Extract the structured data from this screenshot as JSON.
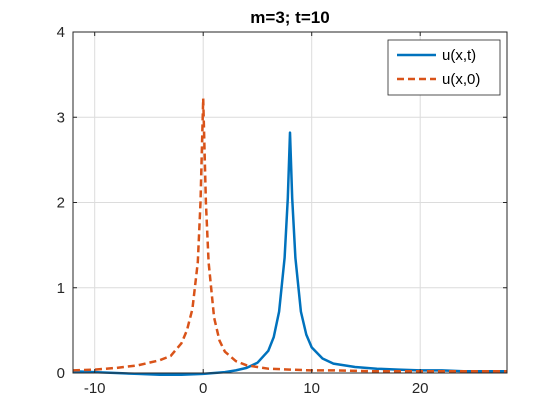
{
  "chart_data": {
    "type": "line",
    "title": "m=3; t=10",
    "xlabel": "",
    "ylabel": "",
    "xlim": [
      -12,
      28
    ],
    "ylim": [
      0,
      4
    ],
    "xticks": [
      -10,
      0,
      10,
      20
    ],
    "yticks": [
      0,
      1,
      2,
      3,
      4
    ],
    "xtick_labels": [
      "-10",
      "0",
      "10",
      "20"
    ],
    "ytick_labels": [
      "0",
      "1",
      "2",
      "3",
      "4"
    ],
    "grid": true,
    "legend_position": "top-right",
    "series": [
      {
        "name": "u(x,t)",
        "style": "solid",
        "color": "#0072BD",
        "x": [
          -12,
          -10,
          -8,
          -6,
          -4,
          -2,
          0,
          2,
          3,
          4,
          5,
          6,
          6.5,
          7,
          7.5,
          7.8,
          8,
          8.2,
          8.5,
          9,
          9.5,
          10,
          11,
          12,
          14,
          16,
          18,
          20,
          22,
          24,
          26,
          28
        ],
        "y": [
          0.02,
          0.01,
          0.0,
          -0.01,
          -0.02,
          -0.02,
          -0.01,
          0.01,
          0.03,
          0.06,
          0.12,
          0.26,
          0.42,
          0.72,
          1.35,
          2.05,
          2.82,
          2.05,
          1.35,
          0.72,
          0.45,
          0.3,
          0.17,
          0.11,
          0.07,
          0.05,
          0.04,
          0.03,
          0.03,
          0.02,
          0.02,
          0.02
        ]
      },
      {
        "name": "u(x,0)",
        "style": "dashed",
        "color": "#D95319",
        "x": [
          -12,
          -10,
          -8,
          -6,
          -4,
          -3,
          -2,
          -1.5,
          -1,
          -0.5,
          -0.25,
          0,
          0.25,
          0.5,
          1,
          1.5,
          2,
          3,
          4,
          6,
          8,
          10,
          12,
          16,
          20,
          24,
          28
        ],
        "y": [
          0.03,
          0.04,
          0.06,
          0.09,
          0.15,
          0.2,
          0.35,
          0.5,
          0.75,
          1.3,
          2.0,
          3.22,
          2.0,
          1.3,
          0.65,
          0.38,
          0.25,
          0.14,
          0.09,
          0.05,
          0.04,
          0.03,
          0.03,
          0.02,
          0.02,
          0.02,
          0.02
        ]
      }
    ]
  }
}
